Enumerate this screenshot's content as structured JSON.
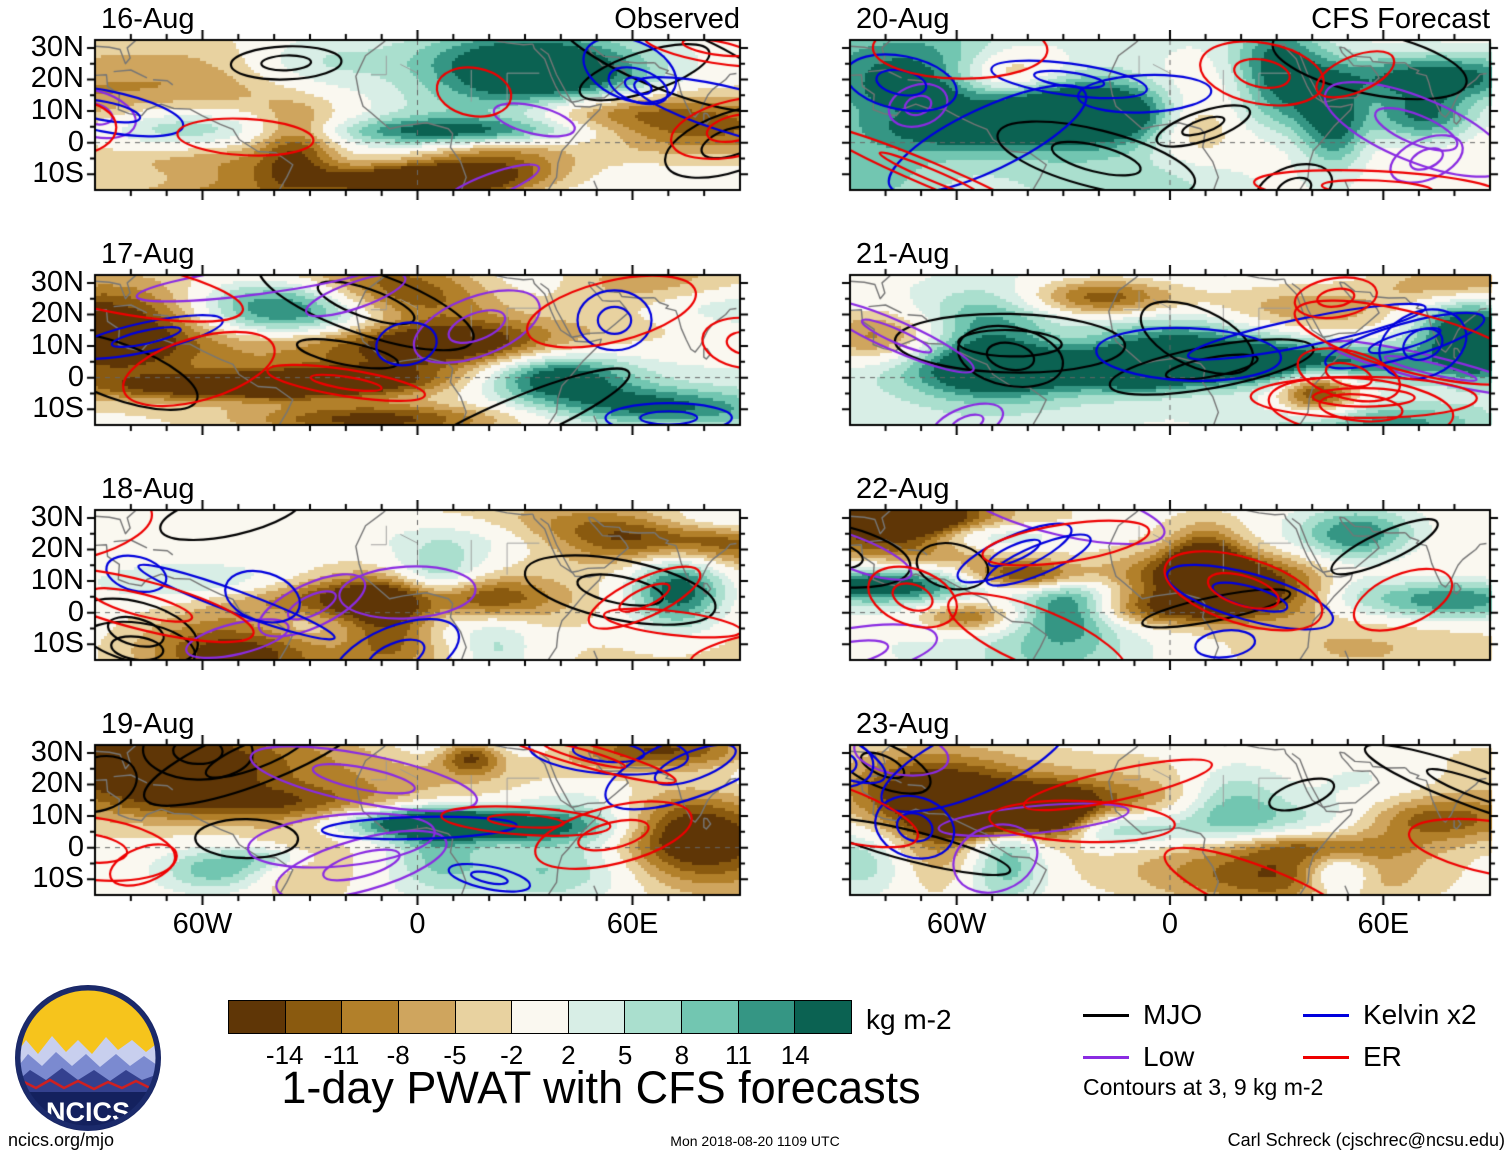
{
  "header": {
    "left_label": "Observed",
    "right_label": "CFS Forecast"
  },
  "panels": [
    {
      "date": "16-Aug",
      "column": "Observed"
    },
    {
      "date": "17-Aug",
      "column": "Observed"
    },
    {
      "date": "18-Aug",
      "column": "Observed"
    },
    {
      "date": "19-Aug",
      "column": "Observed"
    },
    {
      "date": "20-Aug",
      "column": "CFS Forecast"
    },
    {
      "date": "21-Aug",
      "column": "CFS Forecast"
    },
    {
      "date": "22-Aug",
      "column": "CFS Forecast"
    },
    {
      "date": "23-Aug",
      "column": "CFS Forecast"
    }
  ],
  "axes": {
    "lat_ticks": [
      {
        "label": "30N",
        "value": 30
      },
      {
        "label": "20N",
        "value": 20
      },
      {
        "label": "10N",
        "value": 10
      },
      {
        "label": "0",
        "value": 0
      },
      {
        "label": "10S",
        "value": -10
      }
    ],
    "lon_ticks": [
      {
        "label": "60W",
        "value": -60
      },
      {
        "label": "0",
        "value": 0
      },
      {
        "label": "60E",
        "value": 60
      }
    ]
  },
  "colorbar": {
    "tick_values": [
      -14,
      -11,
      -8,
      -5,
      -2,
      2,
      5,
      8,
      11,
      14
    ],
    "unit": "kg m-2",
    "colors": [
      "#5f3606",
      "#8a5a0f",
      "#b2802a",
      "#cfa55e",
      "#e8d2a0",
      "#faf8f0",
      "#d8eee6",
      "#aadfce",
      "#72c6b1",
      "#359684",
      "#0b6252"
    ]
  },
  "title": "1-day PWAT with CFS forecasts",
  "legend": {
    "entries": [
      {
        "label": "MJO",
        "color": "#000000"
      },
      {
        "label": "Low",
        "color": "#8a2be2"
      },
      {
        "label": "Kelvin x2",
        "color": "#0000dd"
      },
      {
        "label": "ER",
        "color": "#ee0000"
      }
    ],
    "note": "Contours at 3, 9 kg m-2"
  },
  "logo": {
    "label": "NCICS"
  },
  "footer": {
    "left": "ncics.org/mjo",
    "center": "Mon 2018-08-20 1109 UTC",
    "right": "Carl Schreck (cjschrec@ncsu.edu)"
  },
  "chart_data": {
    "type": "heatmap",
    "subtype": "filled-contour anomaly maps with wave contour overlays",
    "title": "1-day PWAT with CFS forecasts",
    "columns": [
      "Observed",
      "CFS Forecast"
    ],
    "panel_dates_observed": [
      "16-Aug",
      "17-Aug",
      "18-Aug",
      "19-Aug"
    ],
    "panel_dates_forecast": [
      "20-Aug",
      "21-Aug",
      "22-Aug",
      "23-Aug"
    ],
    "variable": "1-day PWAT anomaly",
    "unit": "kg m-2",
    "colorbar_levels": [
      -14,
      -11,
      -8,
      -5,
      -2,
      2,
      5,
      8,
      11,
      14
    ],
    "colorbar_colors": [
      "#5f3606",
      "#8a5a0f",
      "#b2802a",
      "#cfa55e",
      "#e8d2a0",
      "#faf8f0",
      "#d8eee6",
      "#aadfce",
      "#72c6b1",
      "#359684",
      "#0b6252"
    ],
    "lat_tick_labels": [
      "30N",
      "20N",
      "10N",
      "0",
      "10S"
    ],
    "lon_tick_labels": [
      "60W",
      "0",
      "60E"
    ],
    "overlay_contours": {
      "note": "Contours at 3, 9 kg m-2",
      "series": [
        {
          "name": "MJO",
          "color": "#000000"
        },
        {
          "name": "Low",
          "color": "#8a2be2"
        },
        {
          "name": "Kelvin x2",
          "color": "#0000dd"
        },
        {
          "name": "ER",
          "color": "#ee0000"
        }
      ]
    },
    "timestamp": "Mon 2018-08-20 1109 UTC",
    "source": "ncics.org/mjo",
    "credit": "Carl Schreck (cjschrec@ncsu.edu)"
  }
}
